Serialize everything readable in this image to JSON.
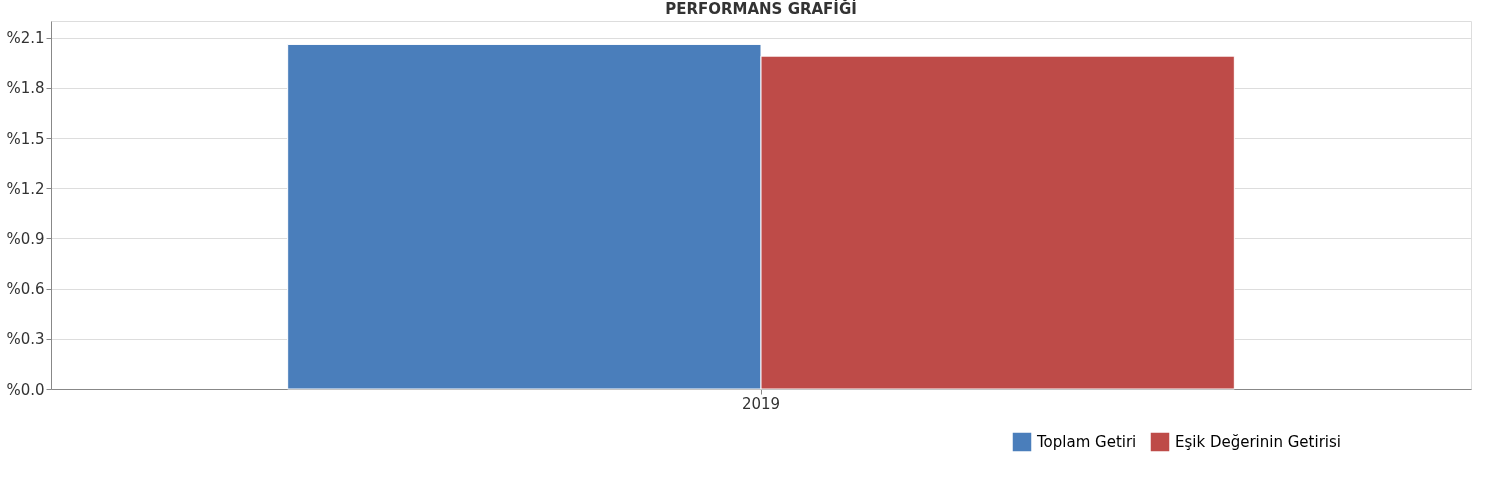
{
  "chart_data": {
    "type": "bar",
    "title": "PERFORMANS GRAFİĞİ",
    "categories": [
      "2019"
    ],
    "series": [
      {
        "name": "Toplam Getiri",
        "color": "#4a7ebb",
        "values": [
          2.06
        ]
      },
      {
        "name": "Eşik Değerinin Getirisi",
        "color": "#be4b48",
        "values": [
          1.99
        ]
      }
    ],
    "ylim": [
      0,
      2.2
    ],
    "yticks": [
      {
        "value": 0,
        "label": "%0.0"
      },
      {
        "value": 0.3,
        "label": "%0.3"
      },
      {
        "value": 0.6,
        "label": "%0.6"
      },
      {
        "value": 0.9,
        "label": "%0.9"
      },
      {
        "value": 1.2,
        "label": "%1.2"
      },
      {
        "value": 1.5,
        "label": "%1.5"
      },
      {
        "value": 1.8,
        "label": "%1.8"
      },
      {
        "value": 2.1,
        "label": "%2.1"
      }
    ],
    "grid": "y",
    "legend": "bottom right"
  }
}
